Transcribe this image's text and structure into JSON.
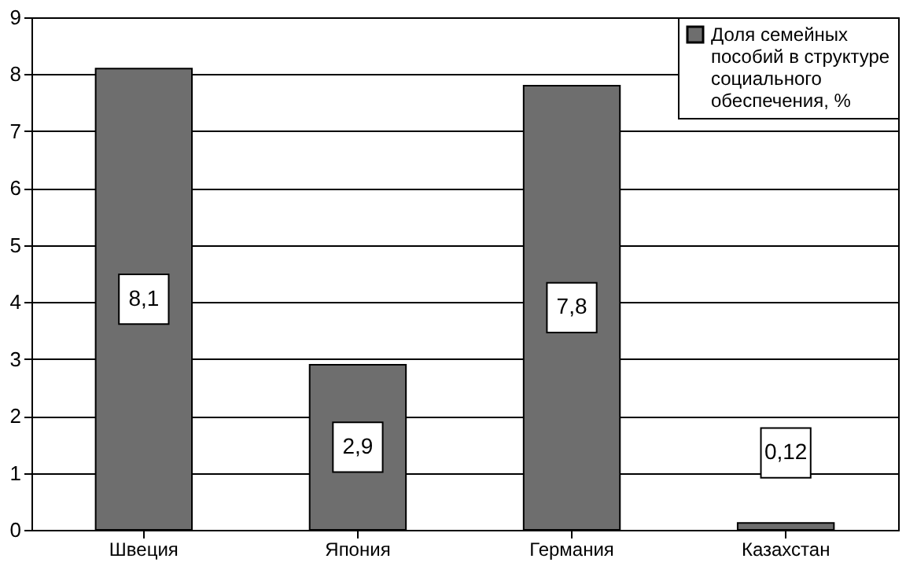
{
  "chart_data": {
    "type": "bar",
    "categories": [
      "Швеция",
      "Япония",
      "Германия",
      "Казахстан"
    ],
    "series": [
      {
        "name": "Доля семейных пособий в структуре социального обеспечения, %",
        "color": "#6e6e6e",
        "values": [
          8.1,
          2.9,
          7.8,
          0.12
        ],
        "value_labels": [
          "8,1",
          "2,9",
          "7,8",
          "0,12"
        ]
      }
    ],
    "ylim": [
      0,
      9
    ],
    "yticks": [
      0,
      1,
      2,
      3,
      4,
      5,
      6,
      7,
      8,
      9
    ],
    "grid": "y",
    "legend": "top right"
  }
}
